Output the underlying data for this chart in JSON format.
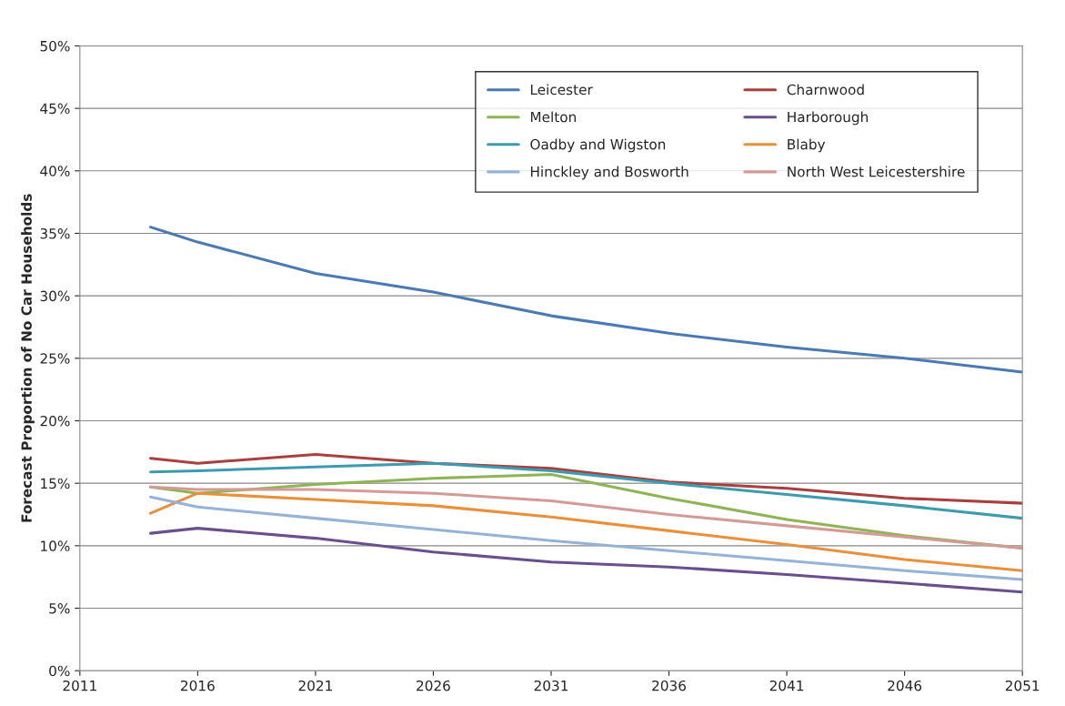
{
  "chart_data": {
    "type": "line",
    "ylabel": "Forecast Proportion of No Car Households",
    "x": [
      2014,
      2016,
      2021,
      2026,
      2031,
      2036,
      2041,
      2046,
      2051
    ],
    "series": [
      {
        "name": "Leicester",
        "color": "#4a7ab5",
        "values": [
          35.5,
          34.3,
          31.8,
          30.3,
          28.4,
          27.0,
          25.9,
          25.0,
          23.9
        ]
      },
      {
        "name": "Charnwood",
        "color": "#a8403d",
        "values": [
          17.0,
          16.6,
          17.3,
          16.6,
          16.2,
          15.1,
          14.6,
          13.8,
          13.4
        ]
      },
      {
        "name": "Melton",
        "color": "#8eb453",
        "values": [
          14.7,
          14.2,
          14.9,
          15.4,
          15.7,
          13.8,
          12.1,
          10.8,
          9.8
        ]
      },
      {
        "name": "Harborough",
        "color": "#6a4f8f",
        "values": [
          11.0,
          11.4,
          10.6,
          9.5,
          8.7,
          8.3,
          7.7,
          7.0,
          6.3
        ]
      },
      {
        "name": "Oadby and Wigston",
        "color": "#3d9bb0",
        "values": [
          15.9,
          16.0,
          16.3,
          16.6,
          16.0,
          15.0,
          14.1,
          13.2,
          12.2
        ]
      },
      {
        "name": "Blaby",
        "color": "#e8903a",
        "values": [
          12.6,
          14.2,
          13.7,
          13.2,
          12.3,
          11.2,
          10.1,
          8.9,
          8.0
        ]
      },
      {
        "name": "Hinckley and Bosworth",
        "color": "#94b3d8",
        "values": [
          13.9,
          13.1,
          12.2,
          11.3,
          10.4,
          9.6,
          8.8,
          8.0,
          7.3
        ]
      },
      {
        "name": "North West Leicestershire",
        "color": "#d49a96",
        "values": [
          14.7,
          14.5,
          14.5,
          14.2,
          13.6,
          12.5,
          11.6,
          10.7,
          9.8
        ]
      }
    ],
    "xlim": [
      2011,
      2051
    ],
    "xticks": [
      2011,
      2016,
      2021,
      2026,
      2031,
      2036,
      2041,
      2046,
      2051
    ],
    "ylim": [
      0,
      50
    ],
    "yticks": [
      {
        "value": 0,
        "label": "0%"
      },
      {
        "value": 5,
        "label": "5%"
      },
      {
        "value": 10,
        "label": "10%"
      },
      {
        "value": 15,
        "label": "15%"
      },
      {
        "value": 20,
        "label": "20%"
      },
      {
        "value": 25,
        "label": "25%"
      },
      {
        "value": 30,
        "label": "30%"
      },
      {
        "value": 35,
        "label": "35%"
      },
      {
        "value": 40,
        "label": "40%"
      },
      {
        "value": 45,
        "label": "45%"
      },
      {
        "value": 50,
        "label": "50%"
      }
    ],
    "grid": "y",
    "legend": "top right",
    "marker": "none",
    "line_style": "solid"
  }
}
